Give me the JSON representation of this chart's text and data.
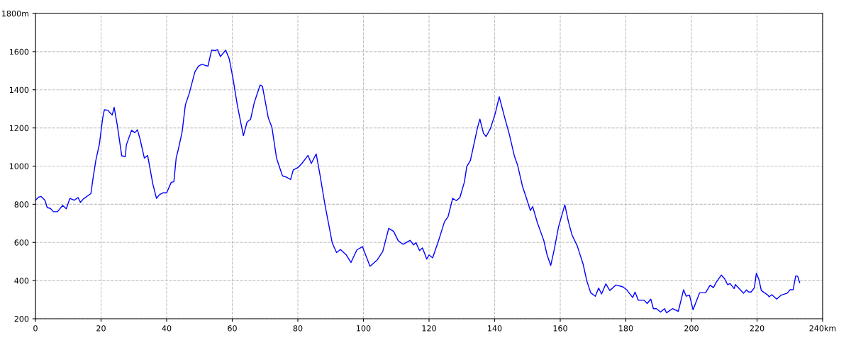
{
  "chart_data": {
    "type": "line",
    "x": [
      0,
      0.9,
      1.7,
      2.9,
      3.6,
      4.5,
      5.5,
      6.7,
      8.3,
      9.4,
      10.5,
      11.8,
      13.0,
      13.7,
      14.6,
      16.9,
      17.5,
      18.4,
      19.5,
      20.5,
      21.0,
      22.1,
      22.7,
      23.4,
      24.0,
      25.0,
      26.3,
      27.4,
      27.7,
      29.3,
      30.3,
      31.1,
      31.9,
      33.2,
      34.2,
      35.8,
      36.9,
      37.8,
      38.9,
      40.0,
      41.4,
      42.2,
      42.9,
      43.6,
      44.7,
      45.7,
      46.9,
      48.6,
      49.7,
      50.8,
      51.9,
      52.6,
      53.7,
      54.8,
      55.5,
      56.4,
      58.0,
      59.1,
      60.2,
      61.6,
      63.4,
      64.5,
      65.6,
      66.7,
      68.5,
      69.2,
      71.0,
      72.1,
      73.5,
      75.3,
      76.4,
      77.8,
      78.6,
      80.0,
      81.1,
      83.1,
      84.1,
      85.6,
      86.8,
      88.3,
      90.5,
      91.8,
      93.0,
      94.8,
      96.2,
      98.0,
      99.7,
      102.0,
      104.3,
      105.9,
      107.7,
      109.2,
      110.6,
      112.1,
      114.2,
      115.3,
      116.0,
      117.1,
      118.0,
      119.3,
      120.0,
      121.1,
      122.9,
      124.7,
      125.8,
      127.2,
      128.3,
      129.4,
      130.8,
      131.5,
      132.6,
      133.7,
      134.8,
      135.5,
      136.6,
      137.4,
      138.7,
      140.2,
      141.4,
      143.1,
      144.5,
      146.0,
      147.0,
      148.5,
      149.6,
      150.9,
      151.6,
      153.0,
      155.0,
      156.0,
      157.1,
      158.2,
      159.5,
      161.4,
      162.5,
      163.6,
      165.2,
      167.0,
      168.1,
      169.3,
      170.7,
      171.7,
      172.6,
      173.9,
      175.1,
      177.0,
      179.1,
      180.3,
      182.1,
      182.8,
      183.8,
      185.6,
      186.5,
      187.6,
      188.4,
      189.3,
      190.6,
      191.8,
      192.4,
      194.2,
      196.0,
      197.6,
      198.4,
      199.4,
      200.5,
      202.5,
      204.3,
      205.7,
      206.7,
      207.5,
      209.1,
      210.1,
      211.0,
      211.8,
      213.0,
      213.4,
      215.9,
      216.8,
      217.4,
      218.2,
      219.2,
      219.8,
      220.6,
      221.3,
      223.3,
      223.7,
      224.5,
      226.0,
      227.4,
      229.2,
      230.1,
      231.0,
      231.8,
      232.4,
      233.0
    ],
    "series": [
      {
        "color": "#0000ff",
        "values": [
          821,
          837,
          841,
          821,
          782,
          779,
          761,
          761,
          794,
          776,
          831,
          821,
          835,
          810,
          828,
          856,
          930,
          1029,
          1116,
          1252,
          1295,
          1293,
          1280,
          1268,
          1308,
          1209,
          1054,
          1050,
          1110,
          1188,
          1175,
          1190,
          1141,
          1042,
          1056,
          905,
          831,
          850,
          860,
          860,
          915,
          918,
          1042,
          1091,
          1178,
          1320,
          1382,
          1493,
          1524,
          1534,
          1527,
          1524,
          1608,
          1605,
          1611,
          1574,
          1608,
          1561,
          1462,
          1314,
          1159,
          1230,
          1246,
          1332,
          1425,
          1419,
          1252,
          1203,
          1042,
          949,
          943,
          930,
          980,
          992,
          1011,
          1056,
          1014,
          1064,
          949,
          794,
          596,
          547,
          563,
          534,
          495,
          561,
          578,
          475,
          510,
          553,
          674,
          658,
          609,
          590,
          611,
          587,
          599,
          557,
          571,
          513,
          534,
          519,
          609,
          708,
          735,
          831,
          819,
          835,
          918,
          998,
          1029,
          1116,
          1203,
          1246,
          1172,
          1155,
          1196,
          1277,
          1363,
          1252,
          1165,
          1054,
          1005,
          893,
          837,
          767,
          788,
          705,
          609,
          534,
          479,
          565,
          683,
          797,
          708,
          639,
          581,
          485,
          398,
          336,
          318,
          361,
          330,
          383,
          348,
          377,
          367,
          351,
          311,
          340,
          297,
          297,
          280,
          303,
          253,
          253,
          235,
          253,
          231,
          253,
          239,
          352,
          318,
          324,
          247,
          336,
          336,
          376,
          363,
          390,
          429,
          410,
          379,
          384,
          358,
          379,
          334,
          351,
          340,
          340,
          363,
          439,
          404,
          348,
          324,
          315,
          326,
          303,
          324,
          334,
          352,
          352,
          425,
          422,
          389
        ]
      }
    ],
    "xlim": [
      0,
      240
    ],
    "ylim": [
      200,
      1800
    ],
    "xticks": [
      0,
      20,
      40,
      60,
      80,
      100,
      120,
      140,
      160,
      180,
      200,
      220,
      {
        "value": 240,
        "label": "240km"
      }
    ],
    "yticks": [
      200,
      400,
      600,
      800,
      1000,
      1200,
      1400,
      1600,
      {
        "value": 1800,
        "label": "1800m"
      }
    ],
    "grid": true,
    "marker": "none",
    "line_style": "solid"
  }
}
